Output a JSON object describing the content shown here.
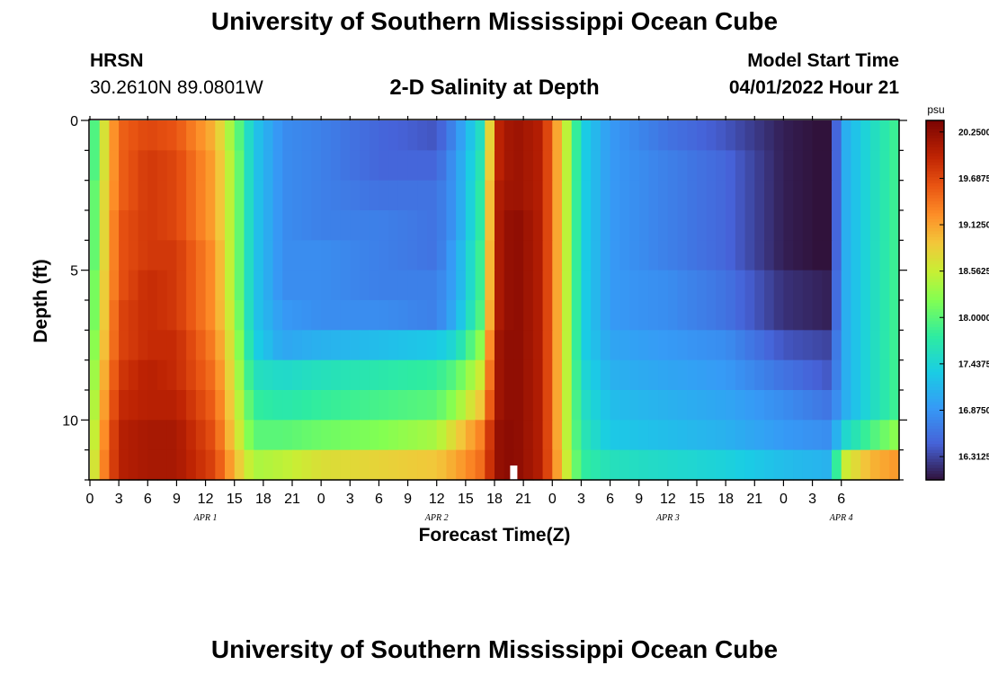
{
  "header": {
    "title": "University of Southern Mississippi Ocean Cube",
    "station_id": "HRSN",
    "station_coords": "30.2610N  89.0801W",
    "plot_title": "2-D Salinity at Depth",
    "start_label": "Model Start Time",
    "start_value": "04/01/2022 Hour 21"
  },
  "footer": {
    "title": "University of Southern Mississippi Ocean Cube"
  },
  "chart_data": {
    "type": "heatmap",
    "title": "2-D Salinity at Depth",
    "xlabel": "Forecast Time(Z)",
    "ylabel": "Depth (ft)",
    "x_hours": [
      0,
      84
    ],
    "x_tick_labels": [
      "0",
      "3",
      "6",
      "9",
      "12",
      "15",
      "18",
      "21",
      "0",
      "3",
      "6",
      "9",
      "12",
      "15",
      "18",
      "21",
      "0",
      "3",
      "6",
      "9",
      "12",
      "15",
      "18",
      "21",
      "0",
      "3",
      "6"
    ],
    "x_day_labels": [
      {
        "hour": 12,
        "label": "APR 1"
      },
      {
        "hour": 36,
        "label": "APR 2"
      },
      {
        "hour": 60,
        "label": "APR 3"
      },
      {
        "hour": 78,
        "label": "APR 4"
      }
    ],
    "y_depth_ft": [
      0,
      12
    ],
    "y_tick_labels": [
      {
        "value": 0,
        "label": "0"
      },
      {
        "value": 5,
        "label": "5"
      },
      {
        "value": 10,
        "label": "10"
      }
    ],
    "colorbar": {
      "unit": "psu",
      "min": 16.03,
      "max": 20.39,
      "tick_labels": [
        "20.2500",
        "19.6875",
        "19.1250",
        "18.5625",
        "18.0000",
        "17.4375",
        "16.8750",
        "16.3125"
      ],
      "tick_values": [
        20.25,
        19.6875,
        19.125,
        18.5625,
        18.0,
        17.4375,
        16.875,
        16.3125
      ]
    },
    "now_marker_hour": 44,
    "depth_rows_ft": [
      0.5,
      1.5,
      2.5,
      3.5,
      4.5,
      5.5,
      6.5,
      7.5,
      8.5,
      9.5,
      10.5,
      11.5
    ],
    "keyframe_hours": [
      0,
      1,
      3,
      6,
      9,
      13,
      15,
      17,
      20,
      24,
      30,
      36,
      38,
      41,
      42,
      44,
      47,
      50,
      51,
      54,
      60,
      66,
      72,
      77,
      78,
      81,
      84
    ],
    "salinity_psu": [
      [
        17.5,
        18.4,
        19.5,
        19.7,
        19.6,
        19.0,
        18.2,
        17.3,
        16.8,
        16.7,
        16.5,
        16.4,
        16.8,
        17.7,
        19.9,
        20.2,
        20.0,
        18.2,
        17.4,
        16.9,
        16.6,
        16.4,
        16.1,
        16.0,
        17.0,
        17.5,
        17.9
      ],
      [
        17.5,
        18.4,
        19.5,
        19.8,
        19.7,
        19.1,
        18.3,
        17.3,
        16.8,
        16.7,
        16.5,
        16.5,
        16.9,
        17.8,
        19.9,
        20.2,
        20.0,
        18.2,
        17.4,
        16.9,
        16.7,
        16.5,
        16.1,
        16.0,
        17.0,
        17.5,
        17.9
      ],
      [
        17.6,
        18.5,
        19.5,
        19.8,
        19.7,
        19.1,
        18.3,
        17.3,
        16.8,
        16.7,
        16.6,
        16.6,
        16.9,
        17.9,
        20.0,
        20.2,
        20.0,
        18.2,
        17.4,
        16.9,
        16.7,
        16.5,
        16.1,
        16.0,
        17.0,
        17.5,
        17.9
      ],
      [
        17.6,
        18.5,
        19.6,
        19.8,
        19.7,
        19.1,
        18.3,
        17.3,
        16.8,
        16.7,
        16.7,
        16.6,
        16.9,
        17.9,
        20.0,
        20.3,
        20.0,
        18.2,
        17.4,
        16.9,
        16.7,
        16.5,
        16.1,
        16.0,
        17.0,
        17.5,
        17.9
      ],
      [
        17.6,
        18.5,
        19.6,
        19.8,
        19.8,
        19.2,
        18.3,
        17.3,
        16.8,
        16.8,
        16.7,
        16.6,
        17.0,
        18.0,
        20.0,
        20.3,
        20.0,
        18.2,
        17.4,
        16.9,
        16.7,
        16.5,
        16.1,
        16.0,
        17.0,
        17.5,
        17.9
      ],
      [
        17.7,
        18.6,
        19.6,
        19.9,
        19.8,
        19.2,
        18.3,
        17.3,
        16.8,
        16.8,
        16.7,
        16.7,
        17.0,
        18.0,
        20.0,
        20.3,
        20.0,
        18.2,
        17.4,
        16.9,
        16.8,
        16.6,
        16.2,
        16.1,
        17.0,
        17.5,
        17.9
      ],
      [
        17.7,
        18.6,
        19.7,
        19.9,
        19.8,
        19.2,
        18.4,
        17.3,
        16.9,
        16.8,
        16.8,
        16.7,
        17.1,
        18.1,
        20.0,
        20.3,
        20.0,
        18.2,
        17.4,
        16.9,
        16.8,
        16.6,
        16.2,
        16.1,
        17.0,
        17.5,
        17.9
      ],
      [
        17.8,
        18.7,
        19.7,
        19.9,
        19.9,
        19.3,
        18.5,
        17.4,
        17.0,
        17.1,
        17.2,
        17.3,
        17.5,
        18.4,
        20.1,
        20.3,
        20.0,
        18.2,
        17.4,
        17.0,
        16.9,
        16.8,
        16.4,
        16.3,
        17.0,
        17.5,
        17.9
      ],
      [
        17.9,
        18.8,
        19.8,
        20.0,
        19.9,
        19.4,
        18.6,
        17.6,
        17.5,
        17.6,
        17.7,
        17.8,
        18.0,
        18.7,
        20.1,
        20.3,
        20.0,
        18.2,
        17.5,
        17.1,
        17.0,
        16.9,
        16.6,
        16.4,
        17.0,
        17.5,
        17.9
      ],
      [
        18.0,
        18.9,
        19.9,
        20.0,
        20.0,
        19.5,
        18.7,
        17.8,
        17.7,
        17.8,
        17.9,
        18.0,
        18.3,
        19.0,
        20.1,
        20.3,
        20.0,
        18.2,
        17.6,
        17.2,
        17.1,
        17.0,
        16.8,
        16.6,
        17.0,
        17.5,
        17.9
      ],
      [
        18.1,
        19.0,
        20.0,
        20.1,
        20.1,
        19.6,
        18.8,
        18.0,
        18.0,
        18.1,
        18.2,
        18.4,
        18.8,
        19.4,
        20.2,
        20.3,
        20.0,
        18.2,
        17.7,
        17.3,
        17.2,
        17.1,
        16.9,
        16.8,
        17.4,
        17.9,
        18.3
      ],
      [
        18.2,
        19.1,
        20.0,
        20.1,
        20.1,
        19.7,
        19.0,
        18.4,
        18.5,
        18.7,
        18.8,
        18.9,
        19.1,
        19.5,
        20.2,
        20.3,
        20.0,
        18.3,
        17.8,
        17.6,
        17.5,
        17.4,
        17.2,
        17.1,
        18.5,
        19.0,
        19.2
      ]
    ]
  }
}
